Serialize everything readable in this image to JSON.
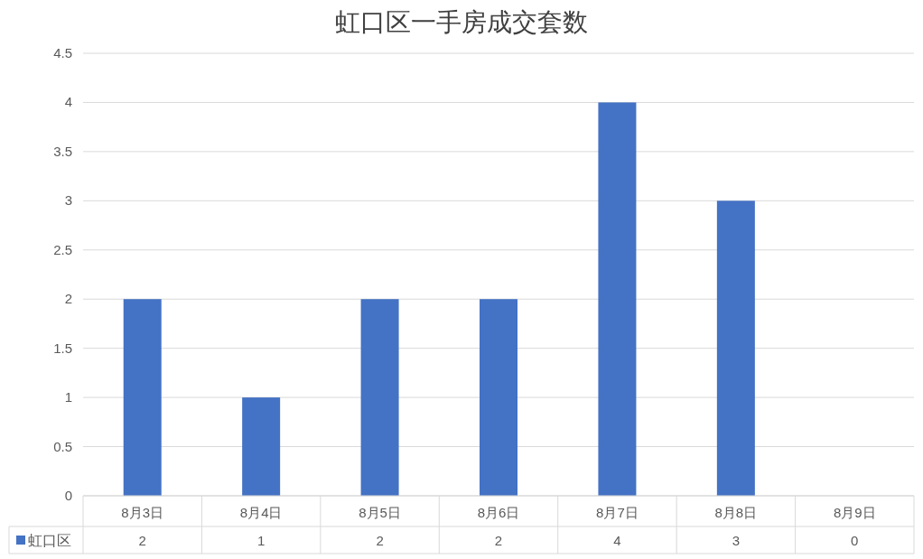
{
  "chart_data": {
    "type": "bar",
    "title": "虹口区一手房成交套数",
    "categories": [
      "8月3日",
      "8月4日",
      "8月5日",
      "8月6日",
      "8月7日",
      "8月8日",
      "8月9日"
    ],
    "series": [
      {
        "name": "虹口区",
        "color": "#4472c4",
        "values": [
          2,
          1,
          2,
          2,
          4,
          3,
          0
        ]
      }
    ],
    "ylim": [
      0,
      4.5
    ],
    "yticks": [
      0,
      0.5,
      1,
      1.5,
      2,
      2.5,
      3,
      3.5,
      4,
      4.5
    ],
    "grid": "y",
    "data_labels": true,
    "legend": "bottom"
  }
}
